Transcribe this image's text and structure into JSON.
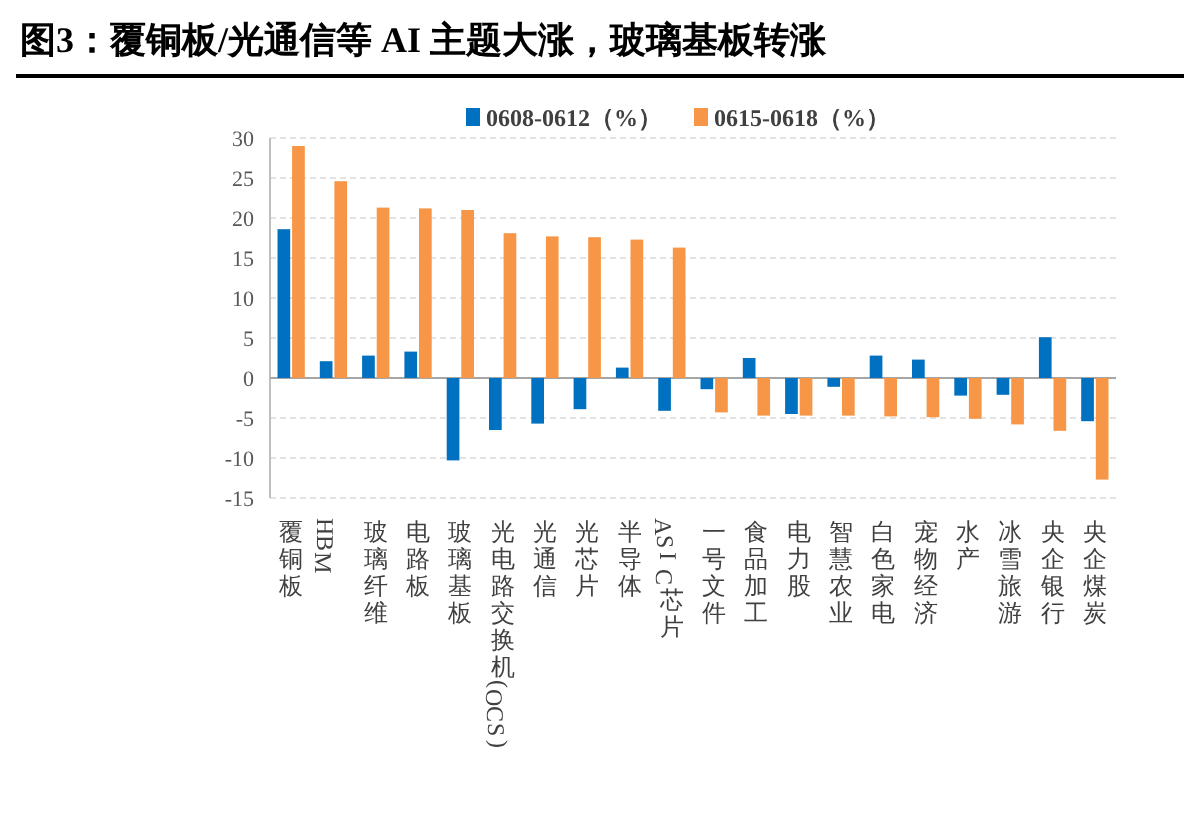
{
  "chart_data": {
    "type": "bar",
    "title": "图3：覆铜板/光通信等 AI 主题大涨，玻璃基板转涨",
    "categories": [
      "覆铜板",
      "HBM",
      "玻璃纤维",
      "电路板",
      "玻璃基板",
      "光电路交换机(OCS)",
      "光通信",
      "光芯片",
      "半导体",
      "ASIC芯片",
      "一号文件",
      "食品加工",
      "电力股",
      "智慧农业",
      "白色家电",
      "宠物经济",
      "水产",
      "冰雪旅游",
      "央企银行",
      "央企煤炭"
    ],
    "series": [
      {
        "name": "0608-0612（%）",
        "color": "#0070c0",
        "values": [
          18.6,
          2.1,
          2.8,
          3.3,
          -10.3,
          -6.5,
          -5.7,
          -3.9,
          1.3,
          -4.1,
          -1.4,
          2.5,
          -4.5,
          -1.1,
          2.8,
          2.3,
          -2.2,
          -2.1,
          5.1,
          -5.4
        ]
      },
      {
        "name": "0615-0618（%）",
        "color": "#f79646",
        "values": [
          29,
          24.6,
          21.3,
          21.2,
          21,
          18.1,
          17.7,
          17.6,
          17.3,
          16.3,
          -4.3,
          -4.7,
          -4.7,
          -4.7,
          -4.8,
          -4.9,
          -5.1,
          -5.8,
          -6.6,
          -12.7
        ]
      }
    ],
    "ylim": [
      -15,
      30
    ],
    "yticks": [
      -15,
      -10,
      -5,
      0,
      5,
      10,
      15,
      20,
      25,
      30
    ],
    "grid": "y",
    "legend": "top"
  }
}
